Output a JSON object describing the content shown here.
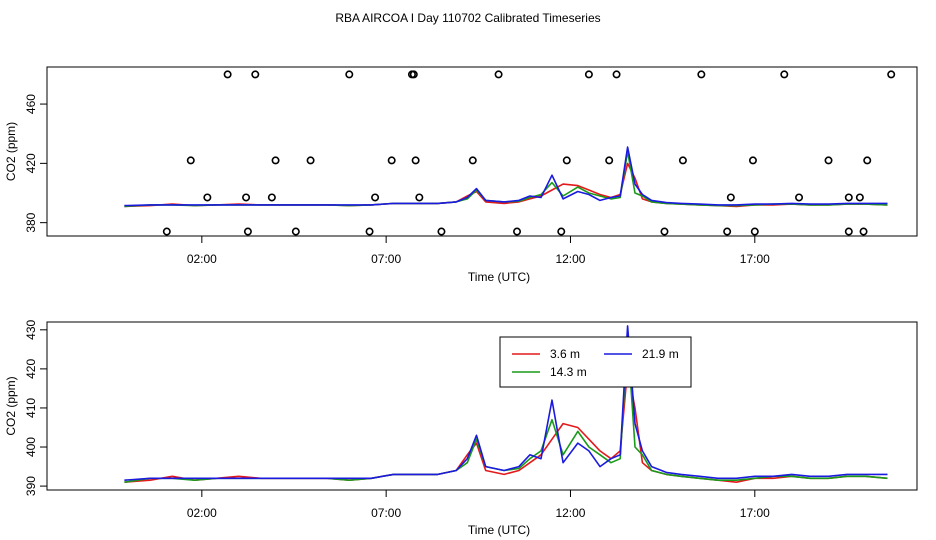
{
  "title": "RBA AIRCOA I  Day 110702  Calibrated Timeseries",
  "chart_data": [
    {
      "type": "scatter+line",
      "xlabel": "Time (UTC)",
      "ylabel": "CO2 (ppm)",
      "xlim": [
        -2.2,
        21.4
      ],
      "ylim": [
        371,
        485
      ],
      "xticks": [
        {
          "value": 2,
          "label": "02:00"
        },
        {
          "value": 7,
          "label": "07:00"
        },
        {
          "value": 12,
          "label": "12:00"
        },
        {
          "value": 17,
          "label": "17:00"
        }
      ],
      "yticks": [
        {
          "value": 380,
          "label": "380"
        },
        {
          "value": 420,
          "label": "420"
        },
        {
          "value": 460,
          "label": "460"
        }
      ],
      "points": {
        "marker": "open-circle",
        "x": [
          1.05,
          1.7,
          2.15,
          2.7,
          3.25,
          3.2,
          3.45,
          3.9,
          4.0,
          4.55,
          4.95,
          6.0,
          6.55,
          6.7,
          7.15,
          7.7,
          7.75,
          7.8,
          7.9,
          8.5,
          9.35,
          10.05,
          10.55,
          11.75,
          11.9,
          12.5,
          13.05,
          13.25,
          14.55,
          15.05,
          15.55,
          16.25,
          16.35,
          16.95,
          17.0,
          17.8,
          18.2,
          19.0,
          19.55,
          19.55,
          19.85,
          19.95,
          20.05,
          20.7
        ],
        "y": [
          374,
          422,
          397,
          480,
          374,
          397,
          480,
          397,
          422,
          374,
          422,
          480,
          374,
          397,
          422,
          480,
          480,
          422,
          397,
          374,
          422,
          480,
          374,
          374,
          422,
          480,
          422,
          480,
          374,
          422,
          480,
          374,
          397,
          422,
          374,
          480,
          397,
          422,
          374,
          397,
          397,
          374,
          422,
          480
        ]
      },
      "series": [
        {
          "name": "3.6 m",
          "color": "#e31a1c",
          "x": [
            -0.1,
            0.6,
            1.2,
            1.8,
            2.4,
            3.0,
            3.6,
            4.2,
            4.8,
            5.4,
            6.0,
            6.6,
            7.2,
            7.8,
            8.4,
            8.9,
            9.2,
            9.45,
            9.7,
            10.2,
            10.6,
            10.9,
            11.2,
            11.5,
            11.8,
            12.2,
            12.5,
            12.8,
            13.1,
            13.35,
            13.55,
            13.75,
            13.95,
            14.2,
            14.6,
            15.0,
            15.5,
            16.0,
            16.5,
            17.0,
            17.5,
            18.0,
            18.5,
            19.0,
            19.5,
            20.0,
            20.6
          ],
          "y": [
            391,
            391.5,
            392.5,
            391.5,
            392,
            392.5,
            392,
            392,
            392,
            392,
            391.5,
            392,
            393,
            393,
            393,
            394,
            398,
            401,
            394,
            393,
            394,
            396,
            398,
            402,
            406,
            405,
            402,
            399,
            397,
            399,
            420,
            410,
            396,
            394,
            393,
            392.5,
            392,
            391.5,
            391,
            392,
            392,
            392.5,
            392,
            392,
            392.5,
            392.5,
            392
          ]
        },
        {
          "name": "14.3 m",
          "color": "#1a9a1a",
          "x": [
            -0.1,
            0.6,
            1.2,
            1.8,
            2.4,
            3.0,
            3.6,
            4.2,
            4.8,
            5.4,
            6.0,
            6.6,
            7.2,
            7.8,
            8.4,
            8.9,
            9.2,
            9.45,
            9.7,
            10.2,
            10.6,
            10.9,
            11.2,
            11.5,
            11.8,
            12.2,
            12.5,
            12.8,
            13.1,
            13.35,
            13.55,
            13.75,
            13.95,
            14.2,
            14.6,
            15.0,
            15.5,
            16.0,
            16.5,
            17.0,
            17.5,
            18.0,
            18.5,
            19.0,
            19.5,
            20.0,
            20.6
          ],
          "y": [
            391,
            392,
            392,
            391.5,
            392,
            392,
            392,
            392,
            392,
            392,
            391.5,
            392,
            393,
            393,
            393,
            394,
            396,
            402,
            395,
            394,
            394.5,
            397,
            399,
            407,
            398,
            404,
            400,
            398,
            396,
            397,
            428,
            400,
            398,
            394,
            393,
            392.5,
            392,
            391.5,
            391.5,
            392,
            392.5,
            392.5,
            392,
            392,
            392.5,
            392.5,
            392
          ]
        },
        {
          "name": "21.9 m",
          "color": "#1a1ae0",
          "x": [
            -0.1,
            0.6,
            1.2,
            1.8,
            2.4,
            3.0,
            3.6,
            4.2,
            4.8,
            5.4,
            6.0,
            6.6,
            7.2,
            7.8,
            8.4,
            8.9,
            9.2,
            9.45,
            9.7,
            10.2,
            10.6,
            10.9,
            11.2,
            11.5,
            11.8,
            12.2,
            12.5,
            12.8,
            13.1,
            13.35,
            13.55,
            13.75,
            13.95,
            14.2,
            14.6,
            15.0,
            15.5,
            16.0,
            16.5,
            17.0,
            17.5,
            18.0,
            18.5,
            19.0,
            19.5,
            20.0,
            20.6
          ],
          "y": [
            391.5,
            392,
            392,
            392,
            392,
            392,
            392,
            392,
            392,
            392,
            392,
            392,
            393,
            393,
            393,
            394,
            397,
            403,
            395,
            394,
            395,
            398,
            397,
            412,
            396,
            401,
            399,
            395,
            397,
            398,
            431,
            406,
            399,
            395,
            393.5,
            393,
            392.5,
            392,
            392,
            392.5,
            392.5,
            393,
            392.5,
            392.5,
            393,
            393,
            393
          ]
        }
      ]
    },
    {
      "type": "line",
      "xlabel": "Time (UTC)",
      "ylabel": "CO2 (ppm)",
      "xlim": [
        -2.2,
        21.4
      ],
      "ylim": [
        389,
        432
      ],
      "xticks": [
        {
          "value": 2,
          "label": "02:00"
        },
        {
          "value": 7,
          "label": "07:00"
        },
        {
          "value": 12,
          "label": "12:00"
        },
        {
          "value": 17,
          "label": "17:00"
        }
      ],
      "yticks": [
        {
          "value": 390,
          "label": "390"
        },
        {
          "value": 400,
          "label": "400"
        },
        {
          "value": 410,
          "label": "410"
        },
        {
          "value": 420,
          "label": "420"
        },
        {
          "value": 430,
          "label": "430"
        }
      ],
      "legend": {
        "placement": "top-center",
        "entries": [
          "3.6 m",
          "14.3 m",
          "21.9 m"
        ]
      },
      "series": [
        {
          "name": "3.6 m",
          "color": "#e31a1c",
          "x": [
            -0.1,
            0.6,
            1.2,
            1.8,
            2.4,
            3.0,
            3.6,
            4.2,
            4.8,
            5.4,
            6.0,
            6.6,
            7.2,
            7.8,
            8.4,
            8.9,
            9.2,
            9.45,
            9.7,
            10.2,
            10.6,
            10.9,
            11.2,
            11.5,
            11.8,
            12.2,
            12.5,
            12.8,
            13.1,
            13.35,
            13.55,
            13.75,
            13.95,
            14.2,
            14.6,
            15.0,
            15.5,
            16.0,
            16.5,
            17.0,
            17.5,
            18.0,
            18.5,
            19.0,
            19.5,
            20.0,
            20.6
          ],
          "y": [
            391,
            391.5,
            392.5,
            391.5,
            392,
            392.5,
            392,
            392,
            392,
            392,
            391.5,
            392,
            393,
            393,
            393,
            394,
            398,
            401,
            394,
            393,
            394,
            396,
            398,
            402,
            406,
            405,
            402,
            399,
            397,
            399,
            420,
            410,
            396,
            394,
            393,
            392.5,
            392,
            391.5,
            391,
            392,
            392,
            392.5,
            392,
            392,
            392.5,
            392.5,
            392
          ]
        },
        {
          "name": "14.3 m",
          "color": "#1a9a1a",
          "x": [
            -0.1,
            0.6,
            1.2,
            1.8,
            2.4,
            3.0,
            3.6,
            4.2,
            4.8,
            5.4,
            6.0,
            6.6,
            7.2,
            7.8,
            8.4,
            8.9,
            9.2,
            9.45,
            9.7,
            10.2,
            10.6,
            10.9,
            11.2,
            11.5,
            11.8,
            12.2,
            12.5,
            12.8,
            13.1,
            13.35,
            13.55,
            13.75,
            13.95,
            14.2,
            14.6,
            15.0,
            15.5,
            16.0,
            16.5,
            17.0,
            17.5,
            18.0,
            18.5,
            19.0,
            19.5,
            20.0,
            20.6
          ],
          "y": [
            391,
            392,
            392,
            391.5,
            392,
            392,
            392,
            392,
            392,
            392,
            391.5,
            392,
            393,
            393,
            393,
            394,
            396,
            402,
            395,
            394,
            394.5,
            397,
            399,
            407,
            398,
            404,
            400,
            398,
            396,
            397,
            428,
            400,
            398,
            394,
            393,
            392.5,
            392,
            391.5,
            391.5,
            392,
            392.5,
            392.5,
            392,
            392,
            392.5,
            392.5,
            392
          ]
        },
        {
          "name": "21.9 m",
          "color": "#1a1ae0",
          "x": [
            -0.1,
            0.6,
            1.2,
            1.8,
            2.4,
            3.0,
            3.6,
            4.2,
            4.8,
            5.4,
            6.0,
            6.6,
            7.2,
            7.8,
            8.4,
            8.9,
            9.2,
            9.45,
            9.7,
            10.2,
            10.6,
            10.9,
            11.2,
            11.5,
            11.8,
            12.2,
            12.5,
            12.8,
            13.1,
            13.35,
            13.55,
            13.75,
            13.95,
            14.2,
            14.6,
            15.0,
            15.5,
            16.0,
            16.5,
            17.0,
            17.5,
            18.0,
            18.5,
            19.0,
            19.5,
            20.0,
            20.6
          ],
          "y": [
            391.5,
            392,
            392,
            392,
            392,
            392,
            392,
            392,
            392,
            392,
            392,
            392,
            393,
            393,
            393,
            394,
            397,
            403,
            395,
            394,
            395,
            398,
            397,
            412,
            396,
            401,
            399,
            395,
            397,
            398,
            431,
            406,
            399,
            395,
            393.5,
            393,
            392.5,
            392,
            392,
            392.5,
            392.5,
            393,
            392.5,
            392.5,
            393,
            393,
            393
          ]
        }
      ]
    }
  ]
}
